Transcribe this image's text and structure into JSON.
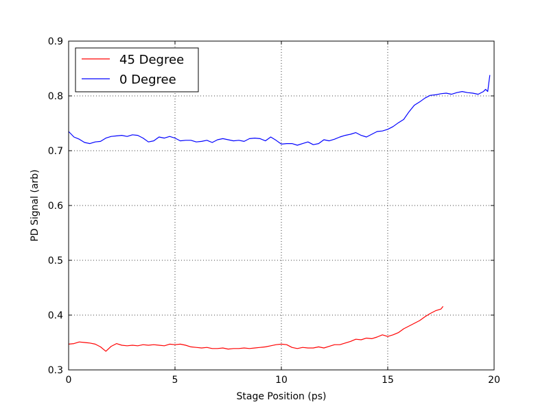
{
  "chart_data": {
    "type": "line",
    "xlabel": "Stage Position (ps)",
    "ylabel": "PD Signal (arb)",
    "xlim": [
      0,
      20
    ],
    "ylim": [
      0.3,
      0.9
    ],
    "xticks": [
      0,
      5,
      10,
      15,
      20
    ],
    "xtick_labels": [
      "0",
      "5",
      "10",
      "15",
      "20"
    ],
    "yticks": [
      0.3,
      0.4,
      0.5,
      0.6,
      0.7,
      0.8,
      0.9
    ],
    "ytick_labels": [
      "0.3",
      "0.4",
      "0.5",
      "0.6",
      "0.7",
      "0.8",
      "0.9"
    ],
    "grid": true,
    "legend_position": "top-left",
    "series": [
      {
        "name": "45 Degree",
        "color": "#ff0000",
        "points": [
          [
            0.0,
            0.347
          ],
          [
            0.25,
            0.348
          ],
          [
            0.5,
            0.351
          ],
          [
            0.75,
            0.35
          ],
          [
            1.0,
            0.349
          ],
          [
            1.25,
            0.347
          ],
          [
            1.5,
            0.342
          ],
          [
            1.75,
            0.334
          ],
          [
            2.0,
            0.343
          ],
          [
            2.25,
            0.348
          ],
          [
            2.5,
            0.345
          ],
          [
            2.75,
            0.344
          ],
          [
            3.0,
            0.345
          ],
          [
            3.25,
            0.344
          ],
          [
            3.5,
            0.346
          ],
          [
            3.75,
            0.345
          ],
          [
            4.0,
            0.346
          ],
          [
            4.25,
            0.345
          ],
          [
            4.5,
            0.344
          ],
          [
            4.75,
            0.347
          ],
          [
            5.0,
            0.346
          ],
          [
            5.25,
            0.347
          ],
          [
            5.5,
            0.345
          ],
          [
            5.75,
            0.342
          ],
          [
            6.0,
            0.341
          ],
          [
            6.25,
            0.34
          ],
          [
            6.5,
            0.341
          ],
          [
            6.75,
            0.339
          ],
          [
            7.0,
            0.339
          ],
          [
            7.25,
            0.34
          ],
          [
            7.5,
            0.338
          ],
          [
            7.75,
            0.339
          ],
          [
            8.0,
            0.339
          ],
          [
            8.25,
            0.34
          ],
          [
            8.5,
            0.339
          ],
          [
            8.75,
            0.34
          ],
          [
            9.0,
            0.341
          ],
          [
            9.25,
            0.342
          ],
          [
            9.5,
            0.344
          ],
          [
            9.75,
            0.346
          ],
          [
            10.0,
            0.347
          ],
          [
            10.25,
            0.346
          ],
          [
            10.5,
            0.341
          ],
          [
            10.75,
            0.339
          ],
          [
            11.0,
            0.341
          ],
          [
            11.25,
            0.34
          ],
          [
            11.5,
            0.34
          ],
          [
            11.75,
            0.342
          ],
          [
            12.0,
            0.34
          ],
          [
            12.25,
            0.343
          ],
          [
            12.5,
            0.346
          ],
          [
            12.75,
            0.346
          ],
          [
            13.0,
            0.349
          ],
          [
            13.25,
            0.352
          ],
          [
            13.5,
            0.356
          ],
          [
            13.75,
            0.355
          ],
          [
            14.0,
            0.358
          ],
          [
            14.25,
            0.357
          ],
          [
            14.5,
            0.36
          ],
          [
            14.75,
            0.364
          ],
          [
            15.0,
            0.361
          ],
          [
            15.25,
            0.364
          ],
          [
            15.5,
            0.368
          ],
          [
            15.75,
            0.375
          ],
          [
            16.0,
            0.38
          ],
          [
            16.25,
            0.385
          ],
          [
            16.5,
            0.39
          ],
          [
            16.75,
            0.397
          ],
          [
            17.0,
            0.403
          ],
          [
            17.25,
            0.408
          ],
          [
            17.5,
            0.411
          ],
          [
            17.6,
            0.416
          ]
        ]
      },
      {
        "name": "0 Degree",
        "color": "#0000ff",
        "points": [
          [
            0.0,
            0.735
          ],
          [
            0.25,
            0.725
          ],
          [
            0.5,
            0.721
          ],
          [
            0.75,
            0.715
          ],
          [
            1.0,
            0.713
          ],
          [
            1.25,
            0.716
          ],
          [
            1.5,
            0.717
          ],
          [
            1.75,
            0.723
          ],
          [
            2.0,
            0.726
          ],
          [
            2.25,
            0.727
          ],
          [
            2.5,
            0.728
          ],
          [
            2.75,
            0.726
          ],
          [
            3.0,
            0.729
          ],
          [
            3.25,
            0.728
          ],
          [
            3.5,
            0.723
          ],
          [
            3.75,
            0.716
          ],
          [
            4.0,
            0.718
          ],
          [
            4.25,
            0.725
          ],
          [
            4.5,
            0.723
          ],
          [
            4.75,
            0.726
          ],
          [
            5.0,
            0.723
          ],
          [
            5.25,
            0.718
          ],
          [
            5.5,
            0.719
          ],
          [
            5.75,
            0.719
          ],
          [
            6.0,
            0.716
          ],
          [
            6.25,
            0.717
          ],
          [
            6.5,
            0.719
          ],
          [
            6.75,
            0.715
          ],
          [
            7.0,
            0.72
          ],
          [
            7.25,
            0.722
          ],
          [
            7.5,
            0.72
          ],
          [
            7.75,
            0.718
          ],
          [
            8.0,
            0.719
          ],
          [
            8.25,
            0.717
          ],
          [
            8.5,
            0.722
          ],
          [
            8.75,
            0.723
          ],
          [
            9.0,
            0.722
          ],
          [
            9.25,
            0.718
          ],
          [
            9.5,
            0.725
          ],
          [
            9.75,
            0.719
          ],
          [
            10.0,
            0.712
          ],
          [
            10.25,
            0.713
          ],
          [
            10.5,
            0.713
          ],
          [
            10.75,
            0.71
          ],
          [
            11.0,
            0.713
          ],
          [
            11.25,
            0.716
          ],
          [
            11.5,
            0.711
          ],
          [
            11.75,
            0.713
          ],
          [
            12.0,
            0.72
          ],
          [
            12.25,
            0.718
          ],
          [
            12.5,
            0.721
          ],
          [
            12.75,
            0.725
          ],
          [
            13.0,
            0.728
          ],
          [
            13.25,
            0.73
          ],
          [
            13.5,
            0.733
          ],
          [
            13.75,
            0.728
          ],
          [
            14.0,
            0.725
          ],
          [
            14.25,
            0.73
          ],
          [
            14.5,
            0.735
          ],
          [
            14.75,
            0.736
          ],
          [
            15.0,
            0.739
          ],
          [
            15.25,
            0.744
          ],
          [
            15.5,
            0.751
          ],
          [
            15.75,
            0.757
          ],
          [
            16.0,
            0.771
          ],
          [
            16.25,
            0.783
          ],
          [
            16.5,
            0.789
          ],
          [
            16.75,
            0.796
          ],
          [
            17.0,
            0.801
          ],
          [
            17.25,
            0.802
          ],
          [
            17.5,
            0.804
          ],
          [
            17.75,
            0.805
          ],
          [
            18.0,
            0.803
          ],
          [
            18.25,
            0.806
          ],
          [
            18.5,
            0.808
          ],
          [
            18.75,
            0.806
          ],
          [
            19.0,
            0.805
          ],
          [
            19.25,
            0.803
          ],
          [
            19.5,
            0.808
          ],
          [
            19.6,
            0.812
          ],
          [
            19.7,
            0.808
          ],
          [
            19.8,
            0.838
          ]
        ]
      }
    ]
  }
}
